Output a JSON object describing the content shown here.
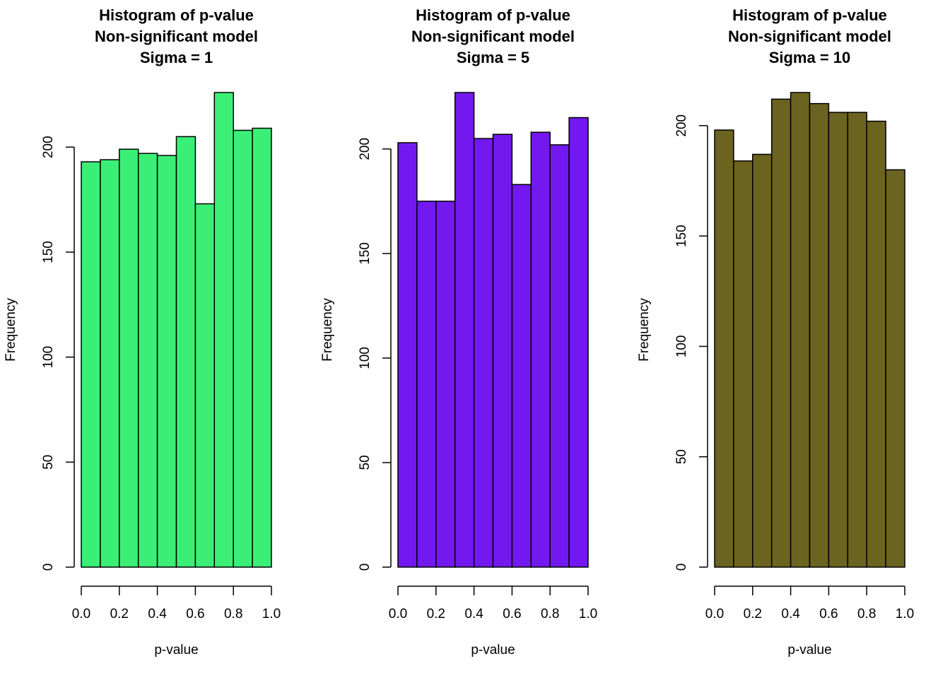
{
  "chart_data": [
    {
      "type": "histogram",
      "title": [
        "Histogram of p-value",
        "Non-significant model",
        "Sigma = 1"
      ],
      "x_label": "p-value",
      "y_label": "Frequency",
      "color": "#3bef76",
      "bins": [
        0,
        0.1,
        0.2,
        0.3,
        0.4,
        0.5,
        0.6,
        0.7,
        0.8,
        0.9,
        1
      ],
      "values": [
        193,
        194,
        199,
        197,
        196,
        205,
        173,
        226,
        208,
        209
      ],
      "xlim": [
        0,
        1
      ],
      "xticks": [
        {
          "value": 0,
          "label": "0.0"
        },
        0.2,
        0.4,
        0.6,
        0.8,
        {
          "value": 1,
          "label": "1.0"
        }
      ],
      "ylim": [
        0,
        226
      ],
      "yticks": [
        0,
        50,
        100,
        150,
        200
      ]
    },
    {
      "type": "histogram",
      "title": [
        "Histogram of p-value",
        "Non-significant model",
        "Sigma = 5"
      ],
      "x_label": "p-value",
      "y_label": "Frequency",
      "color": "#7319ef",
      "bins": [
        0,
        0.1,
        0.2,
        0.3,
        0.4,
        0.5,
        0.6,
        0.7,
        0.8,
        0.9,
        1
      ],
      "values": [
        203,
        175,
        175,
        227,
        205,
        207,
        183,
        208,
        202,
        215
      ],
      "xlim": [
        0,
        1
      ],
      "xticks": [
        {
          "value": 0,
          "label": "0.0"
        },
        0.2,
        0.4,
        0.6,
        0.8,
        {
          "value": 1,
          "label": "1.0"
        }
      ],
      "ylim": [
        0,
        227
      ],
      "yticks": [
        0,
        50,
        100,
        150,
        200
      ]
    },
    {
      "type": "histogram",
      "title": [
        "Histogram of p-value",
        "Non-significant model",
        "Sigma = 10"
      ],
      "x_label": "p-value",
      "y_label": "Frequency",
      "color": "#6b6320",
      "bins": [
        0,
        0.1,
        0.2,
        0.3,
        0.4,
        0.5,
        0.6,
        0.7,
        0.8,
        0.9,
        1
      ],
      "values": [
        198,
        184,
        187,
        212,
        215,
        210,
        206,
        206,
        202,
        180
      ],
      "xlim": [
        0,
        1
      ],
      "xticks": [
        {
          "value": 0,
          "label": "0.0"
        },
        0.2,
        0.4,
        0.6,
        0.8,
        {
          "value": 1,
          "label": "1.0"
        }
      ],
      "ylim": [
        0,
        215
      ],
      "yticks": [
        0,
        50,
        100,
        150,
        200
      ]
    }
  ]
}
